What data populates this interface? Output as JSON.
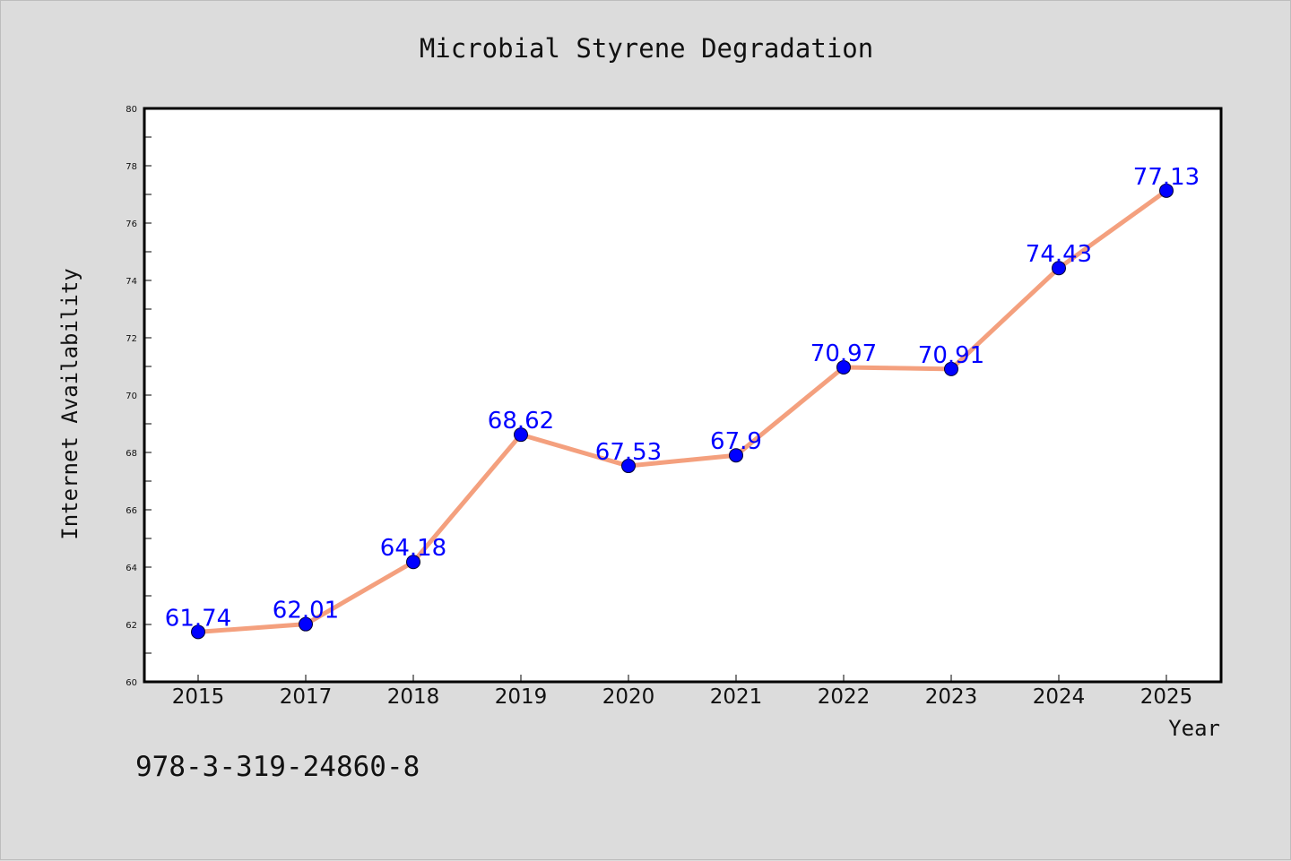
{
  "chart_data": {
    "type": "line",
    "title": "Microbial Styrene Degradation",
    "xlabel": "Year",
    "ylabel": "Internet Availability",
    "categories": [
      "2015",
      "2017",
      "2018",
      "2019",
      "2020",
      "2021",
      "2022",
      "2023",
      "2024",
      "2025"
    ],
    "series": [
      {
        "values": [
          61.74,
          62.01,
          64.18,
          68.62,
          67.53,
          67.9,
          70.97,
          70.91,
          74.43,
          77.13
        ],
        "data_labels": [
          "61.74",
          "62.01",
          "64.18",
          "68.62",
          "67.53",
          "67.9",
          "70.97",
          "70.91",
          "74.43",
          "77.13"
        ],
        "line_color": "#f4a07e",
        "marker_color": "#0000ff"
      }
    ],
    "ylim": [
      60,
      80
    ],
    "yticks": [
      60,
      62,
      64,
      66,
      68,
      70,
      72,
      74,
      76,
      78,
      80
    ],
    "grid": false,
    "legend": "none"
  },
  "footer": {
    "text": "978-3-319-24860-8"
  }
}
